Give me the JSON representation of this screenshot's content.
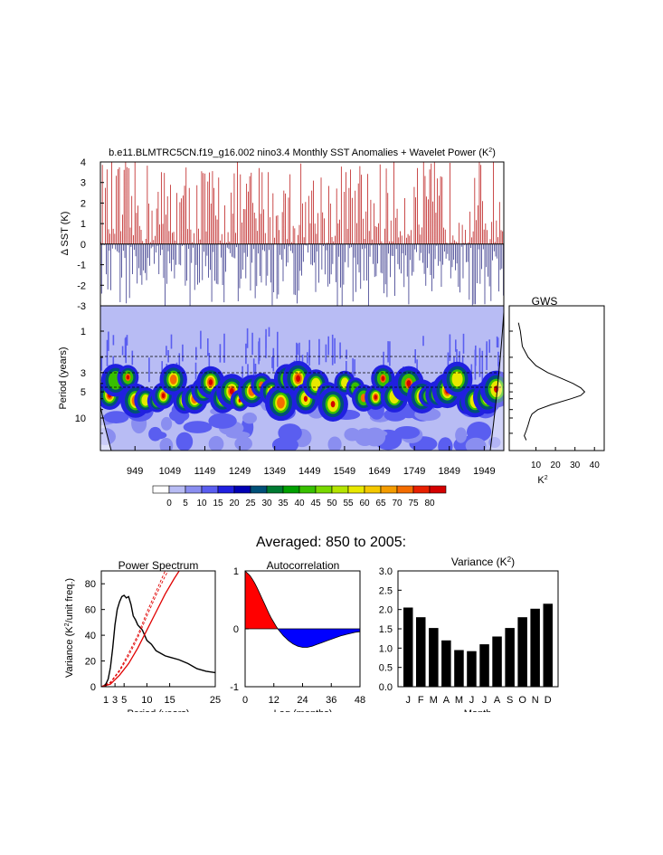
{
  "colors": {
    "positive_anomaly": "#b40000",
    "negative_anomaly": "#1a1a7a",
    "acf_positive": "#ff0000",
    "acf_negative": "#0000ff",
    "red_noise": "#e00000",
    "bar": "#000000",
    "wavelet_background": "#b8bcf4"
  },
  "figure": {
    "main_title": "b.e11.BLMTRC5CN.f19_g16.002 nino3.4 Monthly SST Anomalies + Wavelet Power (K",
    "main_title_sup": "2",
    "main_title_close": ")",
    "averaged_title": "Averaged: 850 to 2005:"
  },
  "chart_data": [
    {
      "id": "sst_timeseries",
      "type": "bar",
      "title": "",
      "ylabel": "Δ SST (K)",
      "yticks": [
        "4",
        "3",
        "2",
        "1",
        "0",
        "-1",
        "-2",
        "-3"
      ],
      "ylim": [
        -3,
        4
      ],
      "xlim": [
        850,
        2005
      ]
    },
    {
      "id": "wavelet_power",
      "type": "heatmap",
      "ylabel": "Period (years)",
      "yticks": [
        "1",
        "3",
        "5",
        "10"
      ],
      "xticks": [
        "949",
        "1049",
        "1149",
        "1249",
        "1349",
        "1449",
        "1549",
        "1649",
        "1749",
        "1849",
        "1949"
      ],
      "colorbar_labels": [
        "0",
        "5",
        "10",
        "15",
        "20",
        "25",
        "30",
        "35",
        "40",
        "45",
        "50",
        "55",
        "60",
        "65",
        "70",
        "75",
        "80"
      ],
      "colorbar_colors": [
        "#ffffff",
        "#b8bcf4",
        "#8a8ef0",
        "#5a5ef0",
        "#2020e0",
        "#0000b4",
        "#005078",
        "#007a32",
        "#00a000",
        "#38c000",
        "#78d800",
        "#b4e400",
        "#e8e800",
        "#f4c800",
        "#f49c00",
        "#f46c00",
        "#e82000",
        "#d40000"
      ]
    },
    {
      "id": "gws",
      "type": "line",
      "title": "GWS",
      "xlabel": "K",
      "xlabel_sup": "2",
      "xticks": [
        "10",
        "20",
        "30",
        "40"
      ],
      "x": [
        0.8,
        1,
        1.5,
        2,
        2.5,
        3,
        3.5,
        4,
        4.5,
        5,
        5.5,
        6,
        7,
        8,
        9,
        10,
        12,
        14,
        16,
        18
      ],
      "values": [
        1,
        2,
        3,
        6,
        10,
        16,
        23,
        29,
        33,
        35,
        33,
        28,
        18,
        11,
        8,
        7,
        6,
        5,
        4,
        5
      ],
      "xlim": [
        0,
        45
      ]
    },
    {
      "id": "power_spectrum",
      "type": "line",
      "title": "Power Spectrum",
      "xlabel": "Period (years)",
      "ylabel": "Variance (K",
      "ylabel_sup": "2",
      "ylabel_rest": "/unit freq.)",
      "xticks": [
        "1",
        "3",
        "5",
        "10",
        "15",
        "25"
      ],
      "yticks": [
        "0",
        "20",
        "40",
        "60",
        "80"
      ],
      "xlim": [
        0,
        25
      ],
      "ylim": [
        0,
        90
      ],
      "series": [
        {
          "name": "spectrum",
          "x": [
            0,
            0.5,
            1,
            1.5,
            2,
            2.5,
            3,
            3.5,
            4,
            4.5,
            5,
            5.5,
            6,
            6.5,
            7,
            7.5,
            8,
            9,
            10,
            11,
            12,
            13,
            14,
            15,
            17,
            19,
            21,
            23,
            25
          ],
          "values": [
            0,
            0.5,
            2,
            6,
            15,
            30,
            48,
            60,
            66,
            70,
            71,
            69,
            70,
            64,
            55,
            52,
            48,
            44,
            36,
            33,
            28,
            26,
            24,
            23,
            21,
            18,
            14,
            12,
            11
          ]
        },
        {
          "name": "red_noise",
          "x": [
            0,
            2,
            4,
            6,
            8,
            10,
            12,
            14,
            16,
            18
          ],
          "values": [
            0,
            2,
            9,
            18,
            30,
            44,
            58,
            72,
            84,
            95
          ]
        },
        {
          "name": "red_noise_95_a",
          "x": [
            0,
            2,
            4,
            6,
            8,
            10,
            12,
            14,
            16
          ],
          "values": [
            0,
            3,
            12,
            24,
            38,
            55,
            71,
            86,
            98
          ]
        },
        {
          "name": "red_noise_95_b",
          "x": [
            0,
            2,
            4,
            6,
            8,
            10,
            12,
            14,
            16
          ],
          "values": [
            0,
            3.5,
            13,
            26,
            40,
            58,
            74,
            90,
            100
          ]
        }
      ]
    },
    {
      "id": "autocorrelation",
      "type": "area",
      "title": "Autocorrelation",
      "xlabel": "Lag (months)",
      "xticks": [
        "0",
        "12",
        "24",
        "36",
        "48"
      ],
      "yticks": [
        "1",
        "0",
        "-1"
      ],
      "xlim": [
        0,
        48
      ],
      "ylim": [
        -1,
        1
      ],
      "x": [
        0,
        1,
        2,
        3,
        4,
        5,
        6,
        7,
        8,
        9,
        10,
        11,
        12,
        13,
        14,
        15,
        16,
        17,
        18,
        20,
        22,
        24,
        26,
        28,
        30,
        32,
        34,
        36,
        38,
        40,
        42,
        44,
        46,
        48
      ],
      "values": [
        1,
        0.96,
        0.92,
        0.86,
        0.79,
        0.71,
        0.62,
        0.53,
        0.44,
        0.35,
        0.26,
        0.18,
        0.11,
        0.04,
        -0.02,
        -0.07,
        -0.12,
        -0.16,
        -0.2,
        -0.26,
        -0.3,
        -0.32,
        -0.32,
        -0.3,
        -0.27,
        -0.24,
        -0.21,
        -0.18,
        -0.15,
        -0.12,
        -0.1,
        -0.08,
        -0.06,
        -0.05
      ]
    },
    {
      "id": "monthly_variance",
      "type": "bar",
      "title": "Variance (K",
      "title_sup": "2",
      "title_close": ")",
      "xlabel": "Month",
      "categories": [
        "J",
        "F",
        "M",
        "A",
        "M",
        "J",
        "J",
        "A",
        "S",
        "O",
        "N",
        "D"
      ],
      "values": [
        2.05,
        1.8,
        1.52,
        1.2,
        0.95,
        0.92,
        1.1,
        1.3,
        1.52,
        1.8,
        2.02,
        2.15
      ],
      "yticks": [
        "0.0",
        "0.5",
        "1.0",
        "1.5",
        "2.0",
        "2.5",
        "3.0"
      ],
      "ylim": [
        0,
        3.0
      ]
    }
  ]
}
